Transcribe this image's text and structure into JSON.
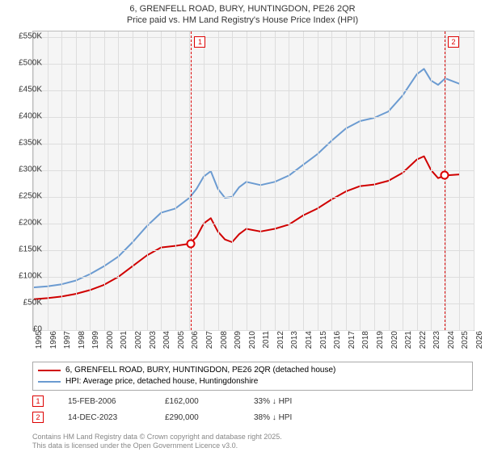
{
  "title_line1": "6, GRENFELL ROAD, BURY, HUNTINGDON, PE26 2QR",
  "title_line2": "Price paid vs. HM Land Registry's House Price Index (HPI)",
  "chart": {
    "type": "line",
    "background_color": "#f5f5f5",
    "grid_color": "#dddddd",
    "border_color": "#bbbbbb",
    "x_years": [
      1995,
      1996,
      1997,
      1998,
      1999,
      2000,
      2001,
      2002,
      2003,
      2004,
      2005,
      2006,
      2007,
      2008,
      2009,
      2010,
      2011,
      2012,
      2013,
      2014,
      2015,
      2016,
      2017,
      2018,
      2019,
      2020,
      2021,
      2022,
      2023,
      2024,
      2025,
      2026
    ],
    "y_ticks": [
      0,
      50,
      100,
      150,
      200,
      250,
      300,
      350,
      400,
      450,
      500,
      550
    ],
    "y_tick_labels": [
      "£0",
      "£50K",
      "£100K",
      "£150K",
      "£200K",
      "£250K",
      "£300K",
      "£350K",
      "£400K",
      "£450K",
      "£500K",
      "£550K"
    ],
    "ylim": [
      0,
      560
    ],
    "xlim": [
      1995,
      2026
    ],
    "series": {
      "property": {
        "color": "#d00000",
        "width": 2,
        "data": [
          [
            1995,
            58
          ],
          [
            1996,
            60
          ],
          [
            1997,
            63
          ],
          [
            1998,
            68
          ],
          [
            1999,
            75
          ],
          [
            2000,
            85
          ],
          [
            2001,
            100
          ],
          [
            2002,
            120
          ],
          [
            2003,
            140
          ],
          [
            2004,
            155
          ],
          [
            2005,
            158
          ],
          [
            2006,
            162
          ],
          [
            2006.5,
            175
          ],
          [
            2007,
            200
          ],
          [
            2007.5,
            210
          ],
          [
            2008,
            185
          ],
          [
            2008.5,
            170
          ],
          [
            2009,
            165
          ],
          [
            2009.5,
            180
          ],
          [
            2010,
            190
          ],
          [
            2011,
            185
          ],
          [
            2012,
            190
          ],
          [
            2013,
            198
          ],
          [
            2014,
            215
          ],
          [
            2015,
            228
          ],
          [
            2016,
            245
          ],
          [
            2017,
            260
          ],
          [
            2018,
            270
          ],
          [
            2019,
            273
          ],
          [
            2020,
            280
          ],
          [
            2021,
            295
          ],
          [
            2022,
            320
          ],
          [
            2022.5,
            326
          ],
          [
            2023,
            300
          ],
          [
            2023.5,
            285
          ],
          [
            2024,
            290
          ],
          [
            2025,
            292
          ]
        ]
      },
      "hpi": {
        "color": "#6b9bd1",
        "width": 2,
        "data": [
          [
            1995,
            80
          ],
          [
            1996,
            82
          ],
          [
            1997,
            86
          ],
          [
            1998,
            93
          ],
          [
            1999,
            105
          ],
          [
            2000,
            120
          ],
          [
            2001,
            138
          ],
          [
            2002,
            165
          ],
          [
            2003,
            195
          ],
          [
            2004,
            220
          ],
          [
            2005,
            228
          ],
          [
            2006,
            248
          ],
          [
            2006.5,
            265
          ],
          [
            2007,
            288
          ],
          [
            2007.5,
            298
          ],
          [
            2008,
            265
          ],
          [
            2008.5,
            248
          ],
          [
            2009,
            250
          ],
          [
            2009.5,
            268
          ],
          [
            2010,
            278
          ],
          [
            2011,
            272
          ],
          [
            2012,
            278
          ],
          [
            2013,
            290
          ],
          [
            2014,
            310
          ],
          [
            2015,
            330
          ],
          [
            2016,
            355
          ],
          [
            2017,
            378
          ],
          [
            2018,
            392
          ],
          [
            2019,
            398
          ],
          [
            2020,
            410
          ],
          [
            2021,
            440
          ],
          [
            2022,
            480
          ],
          [
            2022.5,
            490
          ],
          [
            2023,
            468
          ],
          [
            2023.5,
            460
          ],
          [
            2024,
            472
          ],
          [
            2025,
            462
          ]
        ]
      }
    },
    "events": [
      {
        "n": "1",
        "year": 2006.12,
        "price_k": 162
      },
      {
        "n": "2",
        "year": 2023.95,
        "price_k": 290
      }
    ]
  },
  "legend": {
    "row1": {
      "color": "#d00000",
      "text": "6, GRENFELL ROAD, BURY, HUNTINGDON, PE26 2QR (detached house)"
    },
    "row2": {
      "color": "#6b9bd1",
      "text": "HPI: Average price, detached house, Huntingdonshire"
    }
  },
  "sales": [
    {
      "n": "1",
      "date": "15-FEB-2006",
      "price": "£162,000",
      "delta": "33% ↓ HPI"
    },
    {
      "n": "2",
      "date": "14-DEC-2023",
      "price": "£290,000",
      "delta": "38% ↓ HPI"
    }
  ],
  "footer_line1": "Contains HM Land Registry data © Crown copyright and database right 2025.",
  "footer_line2": "This data is licensed under the Open Government Licence v3.0."
}
